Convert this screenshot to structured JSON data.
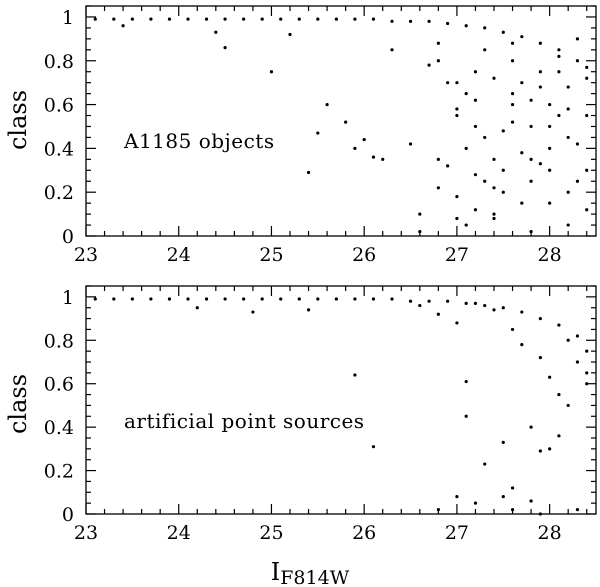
{
  "chart_data": [
    {
      "type": "scatter",
      "ylabel": "class",
      "annotation": "A1185 objects",
      "xlim": [
        23,
        28.5
      ],
      "ylim": [
        0,
        1.05
      ],
      "x_ticks": [
        "23",
        "24",
        "25",
        "26",
        "27",
        "28"
      ],
      "y_ticks": [
        "0",
        "0.2",
        "0.4",
        "0.6",
        "0.8",
        "1"
      ],
      "points": {
        "x": [
          23.1,
          23.3,
          23.5,
          23.7,
          23.9,
          24.1,
          24.3,
          24.5,
          24.7,
          24.9,
          25.1,
          25.3,
          25.5,
          25.7,
          25.9,
          26.1,
          26.3,
          26.5,
          26.7,
          26.9,
          27.1,
          27.3,
          27.5,
          27.7,
          27.9,
          28.1,
          28.3,
          23.4,
          24.4,
          24.5,
          25.0,
          25.2,
          25.4,
          25.5,
          25.6,
          25.8,
          25.9,
          26.0,
          26.1,
          26.2,
          26.3,
          26.5,
          26.7,
          26.8,
          27.0,
          26.6,
          26.8,
          26.9,
          27.0,
          27.1,
          27.2,
          27.3,
          27.4,
          27.5,
          27.6,
          27.7,
          27.8,
          27.9,
          28.0,
          28.1,
          28.2,
          28.3,
          28.4,
          27.2,
          27.4,
          27.6,
          27.8,
          28.0,
          28.2,
          28.4,
          27.1,
          27.3,
          27.5,
          27.7,
          27.9,
          28.1,
          28.3,
          27.0,
          27.2,
          27.4,
          27.6,
          27.8,
          28.0,
          28.2,
          28.4,
          26.9,
          27.1,
          27.3,
          27.5,
          27.7,
          27.9,
          28.1,
          28.3,
          26.6,
          26.8,
          27.0,
          27.2,
          27.4,
          27.6,
          27.8,
          28.0,
          28.2,
          28.4,
          26.8,
          27.0,
          27.2,
          27.4,
          27.6,
          27.8,
          28.0,
          28.2,
          28.4
        ],
        "y": [
          0.99,
          0.99,
          0.99,
          0.99,
          0.99,
          0.99,
          0.99,
          0.99,
          0.99,
          0.99,
          0.99,
          0.99,
          0.99,
          0.99,
          0.99,
          0.99,
          0.98,
          0.98,
          0.98,
          0.97,
          0.96,
          0.95,
          0.93,
          0.91,
          0.88,
          0.85,
          0.8,
          0.96,
          0.93,
          0.86,
          0.75,
          0.92,
          0.29,
          0.47,
          0.6,
          0.52,
          0.4,
          0.44,
          0.36,
          0.35,
          0.85,
          0.42,
          0.78,
          0.88,
          0.7,
          0.1,
          0.22,
          0.32,
          0.55,
          0.65,
          0.28,
          0.45,
          0.72,
          0.2,
          0.6,
          0.38,
          0.5,
          0.68,
          0.3,
          0.75,
          0.58,
          0.42,
          0.77,
          0.12,
          0.35,
          0.8,
          0.62,
          0.15,
          0.45,
          0.55,
          0.05,
          0.25,
          0.48,
          0.7,
          0.33,
          0.82,
          0.25,
          0.18,
          0.62,
          0.1,
          0.52,
          0.02,
          0.4,
          0.68,
          0.12,
          0.7,
          0.4,
          0.85,
          0.3,
          0.15,
          0.75,
          0.55,
          0.9,
          0.02,
          0.35,
          0.08,
          0.5,
          0.22,
          0.88,
          0.35,
          0.6,
          0.05,
          0.3,
          0.8,
          0.58,
          0.75,
          0.08,
          0.65,
          0.25,
          0.5,
          0.2,
          0.72
        ]
      }
    },
    {
      "type": "scatter",
      "ylabel": "class",
      "xlabel_main": "I",
      "xlabel_sub": "F814W",
      "annotation": "artificial point sources",
      "xlim": [
        23,
        28.5
      ],
      "ylim": [
        0,
        1.05
      ],
      "x_ticks": [
        "23",
        "24",
        "25",
        "26",
        "27",
        "28"
      ],
      "y_ticks": [
        "0",
        "0.2",
        "0.4",
        "0.6",
        "0.8",
        "1"
      ],
      "points": {
        "x": [
          23.1,
          23.3,
          23.5,
          23.7,
          23.9,
          24.1,
          24.3,
          24.5,
          24.7,
          24.9,
          25.1,
          25.3,
          25.5,
          25.7,
          25.9,
          26.1,
          26.3,
          26.5,
          26.7,
          26.9,
          27.1,
          27.3,
          27.5,
          27.7,
          27.9,
          28.1,
          28.3,
          24.2,
          24.8,
          25.4,
          25.9,
          26.1,
          26.6,
          26.8,
          27.0,
          27.1,
          27.2,
          27.4,
          27.5,
          27.6,
          27.7,
          27.8,
          27.9,
          28.0,
          28.1,
          28.2,
          28.3,
          28.4,
          27.1,
          27.3,
          27.6,
          27.9,
          28.2,
          28.4,
          27.0,
          27.5,
          27.8,
          28.1,
          28.3,
          26.8,
          27.2,
          27.6,
          27.9,
          28.0,
          28.4
        ],
        "y": [
          0.99,
          0.99,
          0.99,
          0.99,
          0.99,
          0.99,
          0.99,
          0.99,
          0.99,
          0.99,
          0.99,
          0.99,
          0.99,
          0.99,
          0.99,
          0.99,
          0.99,
          0.98,
          0.98,
          0.98,
          0.97,
          0.96,
          0.95,
          0.93,
          0.9,
          0.87,
          0.82,
          0.95,
          0.93,
          0.94,
          0.64,
          0.31,
          0.96,
          0.92,
          0.88,
          0.61,
          0.97,
          0.94,
          0.33,
          0.85,
          0.78,
          0.4,
          0.72,
          0.63,
          0.55,
          0.8,
          0.7,
          0.6,
          0.45,
          0.23,
          0.12,
          0.29,
          0.5,
          0.75,
          0.08,
          0.08,
          0.06,
          0.36,
          0.02,
          0.02,
          0.05,
          0.02,
          0.0,
          0.3,
          0.65
        ]
      }
    }
  ]
}
